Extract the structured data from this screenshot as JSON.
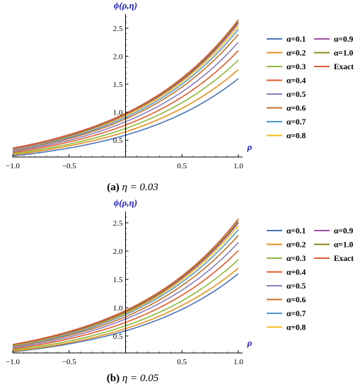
{
  "colors": {
    "a01": "#4a73b8",
    "a02": "#e88f1d",
    "a03": "#8db83a",
    "a04": "#e85a27",
    "a05": "#8c7dbd",
    "a06": "#c86d27",
    "a07": "#4b99d1",
    "a08": "#f2be12",
    "a09": "#9a4fa3",
    "a10": "#8a8a1c",
    "exact": "#de5b3a"
  },
  "legend_labels": {
    "a01": "α=0.1",
    "a02": "α=0.2",
    "a03": "α=0.3",
    "a04": "α=0.4",
    "a05": "α=0.5",
    "a06": "α=0.6",
    "a07": "α=0.7",
    "a08": "α=0.8",
    "a09": "α=0.9",
    "a10": "α=1.0",
    "exact": "Exact"
  },
  "legend_placement": "right",
  "captions": [
    {
      "label": "(a)",
      "text": "η = 0.03"
    },
    {
      "label": "(b)",
      "text": "η = 0.05"
    }
  ],
  "chart_data": [
    {
      "type": "line",
      "title": "",
      "xlabel": "ρ",
      "ylabel": "ϕ(ρ,η)",
      "xlim": [
        -1.0,
        1.0
      ],
      "ylim": [
        0.2,
        2.75
      ],
      "xticks": [
        "-1.0",
        "-0.5",
        "0.5",
        "1.0"
      ],
      "yticks": [
        "0.5",
        "1.0",
        "1.5",
        "2.0",
        "2.5"
      ],
      "grid": false,
      "x": [
        -1.0,
        -0.5,
        0.0,
        0.5,
        1.0
      ],
      "series": [
        {
          "name": "α=0.1",
          "color_key": "a01",
          "values": [
            0.22,
            0.36,
            0.59,
            0.97,
            1.6
          ]
        },
        {
          "name": "α=0.2",
          "color_key": "a02",
          "values": [
            0.24,
            0.4,
            0.65,
            1.07,
            1.76
          ]
        },
        {
          "name": "α=0.3",
          "color_key": "a03",
          "values": [
            0.26,
            0.43,
            0.71,
            1.17,
            1.93
          ]
        },
        {
          "name": "α=0.4",
          "color_key": "a04",
          "values": [
            0.28,
            0.47,
            0.77,
            1.27,
            2.1
          ]
        },
        {
          "name": "α=0.5",
          "color_key": "a05",
          "values": [
            0.3,
            0.5,
            0.83,
            1.36,
            2.25
          ]
        },
        {
          "name": "α=0.6",
          "color_key": "a06",
          "values": [
            0.32,
            0.53,
            0.88,
            1.45,
            2.39
          ]
        },
        {
          "name": "α=0.7",
          "color_key": "a07",
          "values": [
            0.33,
            0.55,
            0.91,
            1.5,
            2.48
          ]
        },
        {
          "name": "α=0.8",
          "color_key": "a08",
          "values": [
            0.34,
            0.57,
            0.94,
            1.54,
            2.54
          ]
        },
        {
          "name": "α=0.9",
          "color_key": "a09",
          "values": [
            0.35,
            0.58,
            0.96,
            1.57,
            2.59
          ]
        },
        {
          "name": "α=1.0",
          "color_key": "a10",
          "values": [
            0.36,
            0.59,
            0.97,
            1.59,
            2.62
          ]
        },
        {
          "name": "Exact",
          "color_key": "exact",
          "values": [
            0.36,
            0.6,
            0.98,
            1.61,
            2.65
          ]
        }
      ]
    },
    {
      "type": "line",
      "title": "",
      "xlabel": "ρ",
      "ylabel": "ϕ(ρ,η)",
      "xlim": [
        -1.0,
        1.0
      ],
      "ylim": [
        0.2,
        2.7
      ],
      "xticks": [
        "-1.0",
        "-0.5",
        "0.5",
        "1.0"
      ],
      "yticks": [
        "0.5",
        "1.0",
        "1.5",
        "2.0",
        "2.5"
      ],
      "grid": false,
      "x": [
        -1.0,
        -0.5,
        0.0,
        0.5,
        1.0
      ],
      "series": [
        {
          "name": "α=0.1",
          "color_key": "a01",
          "values": [
            0.22,
            0.36,
            0.59,
            0.97,
            1.6
          ]
        },
        {
          "name": "α=0.2",
          "color_key": "a02",
          "values": [
            0.23,
            0.38,
            0.63,
            1.04,
            1.7
          ]
        },
        {
          "name": "α=0.3",
          "color_key": "a03",
          "values": [
            0.25,
            0.41,
            0.68,
            1.12,
            1.85
          ]
        },
        {
          "name": "α=0.4",
          "color_key": "a04",
          "values": [
            0.27,
            0.45,
            0.74,
            1.22,
            2.01
          ]
        },
        {
          "name": "α=0.5",
          "color_key": "a05",
          "values": [
            0.29,
            0.48,
            0.8,
            1.31,
            2.15
          ]
        },
        {
          "name": "α=0.6",
          "color_key": "a06",
          "values": [
            0.31,
            0.51,
            0.84,
            1.39,
            2.28
          ]
        },
        {
          "name": "α=0.7",
          "color_key": "a07",
          "values": [
            0.32,
            0.53,
            0.88,
            1.45,
            2.38
          ]
        },
        {
          "name": "α=0.8",
          "color_key": "a08",
          "values": [
            0.33,
            0.55,
            0.9,
            1.49,
            2.45
          ]
        },
        {
          "name": "α=0.9",
          "color_key": "a09",
          "values": [
            0.34,
            0.56,
            0.92,
            1.52,
            2.5
          ]
        },
        {
          "name": "α=1.0",
          "color_key": "a10",
          "values": [
            0.34,
            0.57,
            0.93,
            1.54,
            2.53
          ]
        },
        {
          "name": "Exact",
          "color_key": "exact",
          "values": [
            0.35,
            0.58,
            0.95,
            1.56,
            2.57
          ]
        }
      ]
    }
  ]
}
